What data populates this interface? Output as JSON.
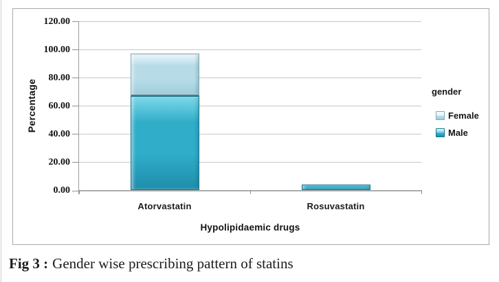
{
  "colors": {
    "frame_border": "#a8a8a8",
    "gridline": "#c6c6c6",
    "axis": "#9a9a9a",
    "segment_divider": "#5b7682",
    "text": "#111111"
  },
  "chart_data": {
    "type": "bar",
    "stacked": true,
    "title": "",
    "categories": [
      "Atorvastatin",
      "Rosuvastatin"
    ],
    "series": [
      {
        "name": "Female",
        "values": [
          30.2,
          0
        ],
        "color": "#b7dce8",
        "color_light": "#eef8fb",
        "color_dark": "#a0ccda",
        "border": "#7fa9b8"
      },
      {
        "name": "Male",
        "values": [
          66.7,
          4.0
        ],
        "color": "#2fadc9",
        "color_light": "#7cd8e8",
        "color_dark": "#1f8dab",
        "border": "#17718c"
      }
    ],
    "xlabel": "Hypolipidaemic drugs",
    "ylabel": "Percentage",
    "ylim": [
      0,
      120
    ],
    "ytick_step": 20,
    "ytick_labels": [
      "0.00",
      "20.00",
      "40.00",
      "60.00",
      "80.00",
      "100.00",
      "120.00"
    ],
    "grid": true,
    "legend_title": "gender",
    "legend_position": "right",
    "legend_items": [
      "Female",
      "Male"
    ]
  },
  "caption": {
    "prefix": "Fig 3 :",
    "text": "Gender wise prescribing pattern of statins"
  }
}
